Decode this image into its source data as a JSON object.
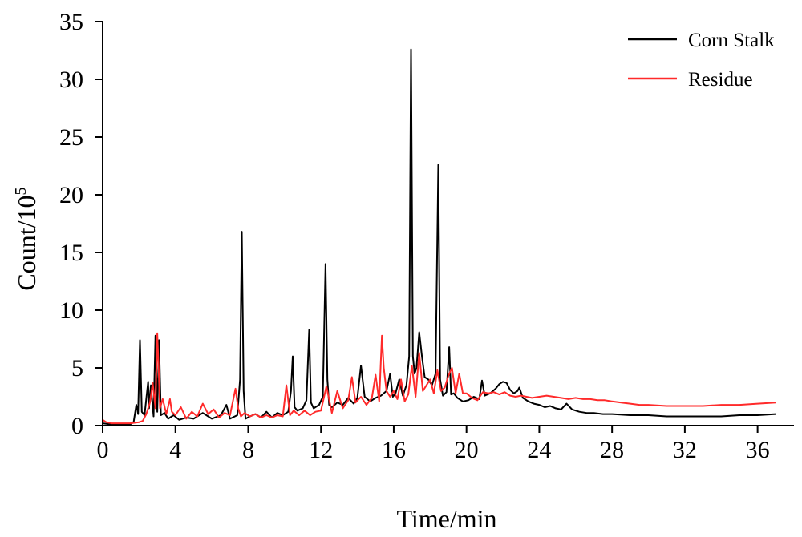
{
  "chart_data": {
    "type": "line",
    "title": "",
    "xlabel": "Time/min",
    "ylabel": "Count/10",
    "ylabel_sup": "5",
    "xlim": [
      0,
      38
    ],
    "ylim": [
      0,
      35
    ],
    "xticks": [
      "0",
      "4",
      "8",
      "12",
      "16",
      "20",
      "24",
      "28",
      "32",
      "36"
    ],
    "yticks": [
      "0",
      "5",
      "10",
      "15",
      "20",
      "25",
      "30",
      "35"
    ],
    "grid": false,
    "legend_position": "top-right",
    "series": [
      {
        "name": "Corn Stalk",
        "color": "#000000",
        "x": [
          0,
          0.5,
          1.5,
          1.7,
          1.85,
          1.95,
          2.05,
          2.15,
          2.3,
          2.5,
          2.55,
          2.65,
          2.8,
          2.9,
          3.0,
          3.1,
          3.2,
          3.4,
          3.6,
          3.9,
          4.2,
          4.6,
          5.0,
          5.5,
          6.0,
          6.5,
          6.8,
          7.0,
          7.4,
          7.55,
          7.65,
          7.75,
          7.85,
          8.1,
          8.4,
          8.7,
          9.0,
          9.3,
          9.6,
          9.9,
          10.2,
          10.35,
          10.45,
          10.55,
          10.7,
          11.0,
          11.2,
          11.35,
          11.45,
          11.6,
          11.9,
          12.1,
          12.25,
          12.35,
          12.45,
          12.6,
          12.9,
          13.2,
          13.5,
          13.8,
          14.0,
          14.2,
          14.4,
          14.7,
          15.0,
          15.3,
          15.6,
          15.8,
          15.95,
          16.1,
          16.3,
          16.5,
          16.7,
          16.85,
          16.95,
          17.05,
          17.15,
          17.25,
          17.4,
          17.55,
          17.7,
          17.9,
          18.1,
          18.3,
          18.45,
          18.55,
          18.7,
          18.9,
          19.05,
          19.15,
          19.3,
          19.5,
          19.8,
          20.1,
          20.4,
          20.7,
          20.85,
          21.0,
          21.3,
          21.6,
          21.8,
          22.0,
          22.2,
          22.4,
          22.6,
          22.8,
          22.9,
          23.1,
          23.4,
          23.7,
          24.0,
          24.3,
          24.6,
          24.9,
          25.2,
          25.5,
          25.8,
          26.2,
          26.6,
          27.0,
          27.5,
          28.0,
          29.0,
          30.0,
          31.0,
          32.0,
          33.0,
          34.0,
          35.0,
          36.0,
          37.0
        ],
        "values": [
          0.2,
          0.1,
          0.1,
          0.3,
          1.8,
          1.0,
          7.4,
          1.2,
          0.9,
          3.8,
          1.5,
          3.5,
          0.8,
          7.8,
          1.2,
          7.4,
          0.9,
          1.1,
          0.6,
          0.9,
          0.5,
          0.7,
          0.6,
          1.1,
          0.6,
          0.9,
          1.8,
          0.6,
          0.9,
          4.0,
          16.8,
          3.0,
          0.6,
          0.8,
          1.0,
          0.7,
          1.2,
          0.7,
          1.1,
          0.9,
          1.2,
          3.0,
          6.0,
          1.6,
          1.3,
          1.5,
          2.2,
          8.3,
          2.0,
          1.5,
          1.8,
          2.5,
          14.0,
          4.0,
          1.8,
          1.6,
          2.0,
          1.8,
          2.4,
          1.9,
          2.4,
          5.2,
          2.5,
          2.1,
          2.4,
          2.6,
          3.0,
          4.5,
          2.5,
          2.8,
          4.0,
          2.6,
          3.5,
          6.0,
          32.6,
          6.0,
          4.5,
          5.0,
          8.1,
          6.0,
          4.2,
          4.0,
          3.5,
          4.5,
          22.6,
          4.0,
          2.6,
          2.9,
          6.8,
          2.7,
          2.8,
          2.4,
          2.1,
          2.2,
          2.5,
          2.3,
          3.9,
          2.6,
          2.8,
          3.2,
          3.6,
          3.8,
          3.7,
          3.1,
          2.8,
          3.0,
          3.3,
          2.4,
          2.1,
          1.9,
          1.8,
          1.6,
          1.7,
          1.5,
          1.4,
          1.9,
          1.4,
          1.2,
          1.1,
          1.1,
          1.0,
          1.0,
          0.9,
          0.9,
          0.8,
          0.8,
          0.8,
          0.8,
          0.9,
          0.9,
          1.0
        ]
      },
      {
        "name": "Residue",
        "color": "#ff2a2a",
        "x": [
          0,
          0.2,
          0.5,
          1.0,
          1.5,
          2.0,
          2.2,
          2.4,
          2.6,
          2.75,
          2.9,
          3.0,
          3.05,
          3.15,
          3.3,
          3.5,
          3.7,
          3.8,
          4.0,
          4.3,
          4.6,
          4.9,
          5.2,
          5.5,
          5.8,
          6.1,
          6.4,
          6.7,
          7.0,
          7.3,
          7.45,
          7.6,
          7.8,
          8.1,
          8.4,
          8.7,
          9.0,
          9.3,
          9.6,
          9.9,
          10.1,
          10.3,
          10.5,
          10.8,
          11.1,
          11.4,
          11.7,
          12.0,
          12.3,
          12.6,
          12.9,
          13.2,
          13.5,
          13.7,
          13.9,
          14.2,
          14.5,
          14.8,
          15.0,
          15.2,
          15.35,
          15.45,
          15.6,
          15.8,
          16.0,
          16.2,
          16.4,
          16.6,
          16.8,
          17.0,
          17.2,
          17.4,
          17.6,
          17.8,
          18.0,
          18.2,
          18.4,
          18.6,
          18.8,
          19.0,
          19.2,
          19.4,
          19.6,
          19.8,
          20.0,
          20.3,
          20.6,
          20.9,
          21.2,
          21.5,
          21.8,
          22.1,
          22.4,
          22.7,
          23.0,
          23.3,
          23.6,
          24.0,
          24.4,
          24.8,
          25.2,
          25.6,
          26.0,
          26.4,
          26.8,
          27.2,
          27.6,
          28.0,
          28.5,
          29.0,
          29.5,
          30.0,
          31.0,
          32.0,
          33.0,
          34.0,
          35.0,
          36.0,
          37.0
        ],
        "values": [
          0.5,
          0.3,
          0.2,
          0.2,
          0.2,
          0.3,
          0.4,
          1.0,
          2.0,
          3.7,
          1.5,
          8.0,
          6.0,
          1.5,
          2.3,
          1.0,
          2.3,
          1.2,
          0.9,
          1.6,
          0.6,
          1.2,
          0.8,
          1.9,
          1.0,
          1.4,
          0.7,
          1.1,
          0.9,
          3.2,
          1.5,
          0.8,
          1.1,
          0.8,
          1.0,
          0.7,
          0.9,
          0.7,
          0.9,
          0.8,
          3.5,
          0.9,
          1.3,
          0.9,
          1.3,
          0.9,
          1.2,
          1.3,
          3.4,
          1.1,
          3.0,
          1.5,
          2.2,
          4.2,
          2.0,
          2.5,
          1.8,
          2.4,
          4.4,
          2.1,
          7.8,
          5.0,
          3.0,
          2.5,
          3.0,
          2.3,
          4.0,
          2.1,
          2.7,
          5.2,
          2.5,
          6.3,
          3.0,
          3.5,
          4.0,
          2.8,
          4.8,
          3.0,
          3.3,
          4.3,
          5.0,
          2.8,
          4.5,
          2.8,
          2.8,
          2.4,
          2.2,
          2.9,
          2.8,
          2.9,
          2.7,
          2.9,
          2.6,
          2.5,
          2.6,
          2.5,
          2.4,
          2.5,
          2.6,
          2.5,
          2.4,
          2.3,
          2.4,
          2.3,
          2.3,
          2.2,
          2.2,
          2.1,
          2.0,
          1.9,
          1.8,
          1.8,
          1.7,
          1.7,
          1.7,
          1.8,
          1.8,
          1.9,
          2.0
        ]
      }
    ]
  }
}
